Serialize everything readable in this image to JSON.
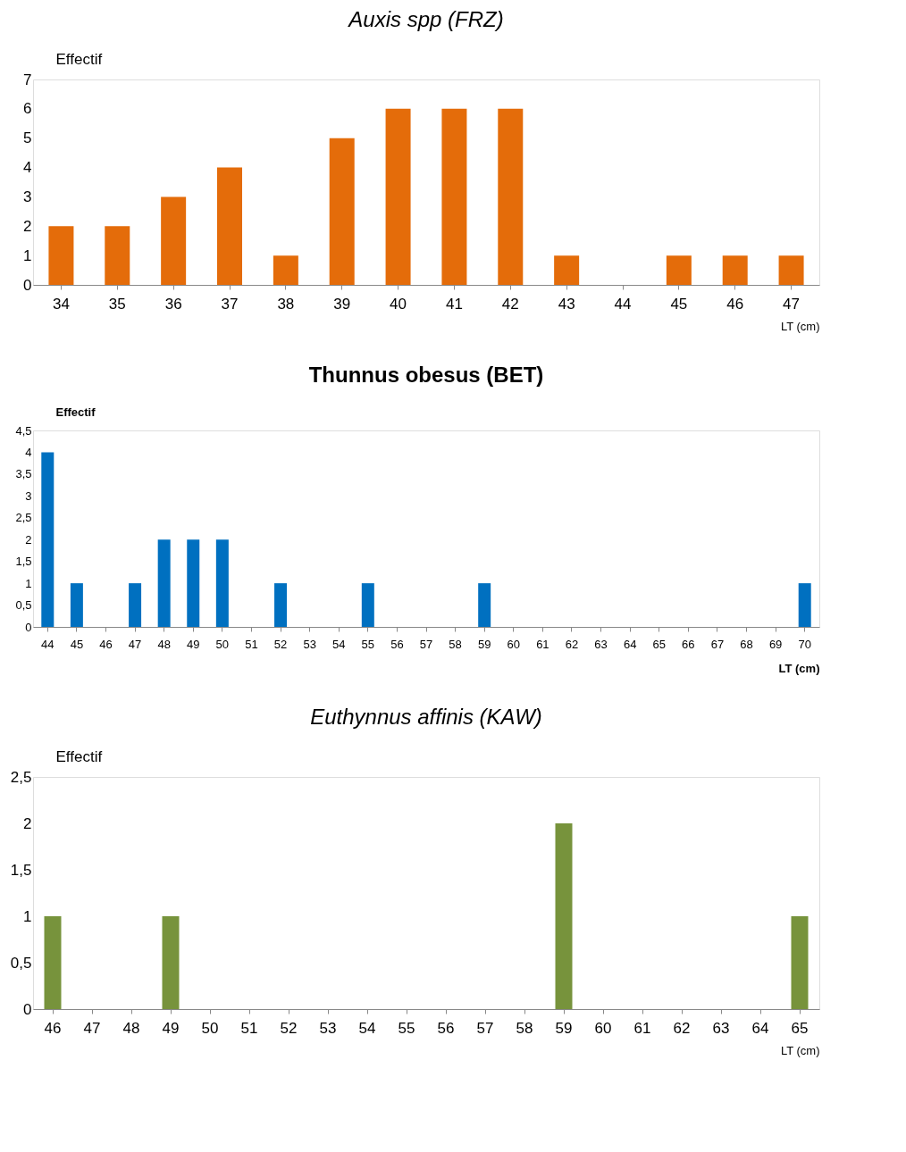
{
  "chart_data": [
    {
      "type": "bar",
      "title": "Auxis spp (FRZ)",
      "ylabel": "Effectif",
      "xlabel": "LT (cm)",
      "color": "#e46c0a",
      "categories": [
        "34",
        "35",
        "36",
        "37",
        "38",
        "39",
        "40",
        "41",
        "42",
        "43",
        "44",
        "45",
        "46",
        "47"
      ],
      "values": [
        2,
        2,
        3,
        4,
        1,
        5,
        6,
        6,
        6,
        1,
        0,
        1,
        1,
        1
      ],
      "ylim": [
        0,
        7
      ],
      "yticks": [
        0,
        1,
        2,
        3,
        4,
        5,
        6,
        7
      ],
      "grid": false
    },
    {
      "type": "bar",
      "title": "Thunnus obesus (BET)",
      "ylabel": "Effectif",
      "xlabel": "LT (cm)",
      "color": "#0070c0",
      "categories": [
        "44",
        "45",
        "46",
        "47",
        "48",
        "49",
        "50",
        "51",
        "52",
        "53",
        "54",
        "55",
        "56",
        "57",
        "58",
        "59",
        "60",
        "61",
        "62",
        "63",
        "64",
        "65",
        "66",
        "67",
        "68",
        "69",
        "70"
      ],
      "values": [
        4,
        1,
        0,
        1,
        2,
        2,
        2,
        0,
        1,
        0,
        0,
        1,
        0,
        0,
        0,
        1,
        0,
        0,
        0,
        0,
        0,
        0,
        0,
        0,
        0,
        0,
        1
      ],
      "ylim": [
        0,
        4.5
      ],
      "yticks": [
        0,
        {
          "value": 0.5,
          "label": "0,5"
        },
        1,
        {
          "value": 1.5,
          "label": "1,5"
        },
        2,
        {
          "value": 2.5,
          "label": "2,5"
        },
        3,
        {
          "value": 3.5,
          "label": "3,5"
        },
        4,
        {
          "value": 4.5,
          "label": "4,5"
        }
      ],
      "grid": false
    },
    {
      "type": "bar",
      "title": "Euthynnus affinis (KAW)",
      "ylabel": "Effectif",
      "xlabel": "LT (cm)",
      "color": "#77933c",
      "categories": [
        "46",
        "47",
        "48",
        "49",
        "50",
        "51",
        "52",
        "53",
        "54",
        "55",
        "56",
        "57",
        "58",
        "59",
        "60",
        "61",
        "62",
        "63",
        "64",
        "65"
      ],
      "values": [
        1,
        0,
        0,
        1,
        0,
        0,
        0,
        0,
        0,
        0,
        0,
        0,
        0,
        2,
        0,
        0,
        0,
        0,
        0,
        1
      ],
      "ylim": [
        0,
        2.5
      ],
      "yticks": [
        0,
        {
          "value": 0.5,
          "label": "0,5"
        },
        1,
        {
          "value": 1.5,
          "label": "1,5"
        },
        2,
        {
          "value": 2.5,
          "label": "2,5"
        }
      ],
      "grid": false
    }
  ]
}
